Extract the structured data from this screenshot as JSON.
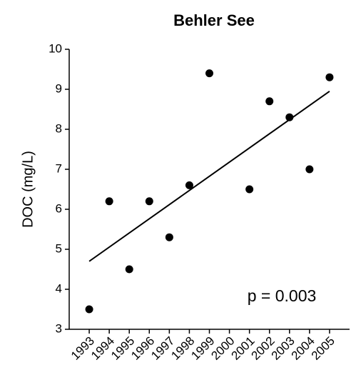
{
  "chart_data": {
    "type": "scatter",
    "title": "Behler See",
    "y_label": "DOC (mg/L)",
    "x": [
      1993,
      1994,
      1995,
      1996,
      1997,
      1998,
      1999,
      2001,
      2002,
      2003,
      2004,
      2005
    ],
    "values": [
      3.5,
      6.2,
      4.5,
      6.2,
      5.3,
      6.6,
      9.4,
      6.5,
      8.7,
      8.3,
      7.0,
      9.3
    ],
    "color": "#000000",
    "trend": {
      "x": [
        1993,
        2005
      ],
      "values": [
        4.7,
        8.95
      ]
    },
    "annotation": "p = 0.003",
    "xlim": [
      1992,
      2006
    ],
    "ylim": [
      3,
      10
    ],
    "xticks": [
      1993,
      1994,
      1995,
      1996,
      1997,
      1998,
      1999,
      2000,
      2001,
      2002,
      2003,
      2004,
      2005
    ],
    "yticks": [
      3,
      4,
      5,
      6,
      7,
      8,
      9,
      10
    ]
  }
}
